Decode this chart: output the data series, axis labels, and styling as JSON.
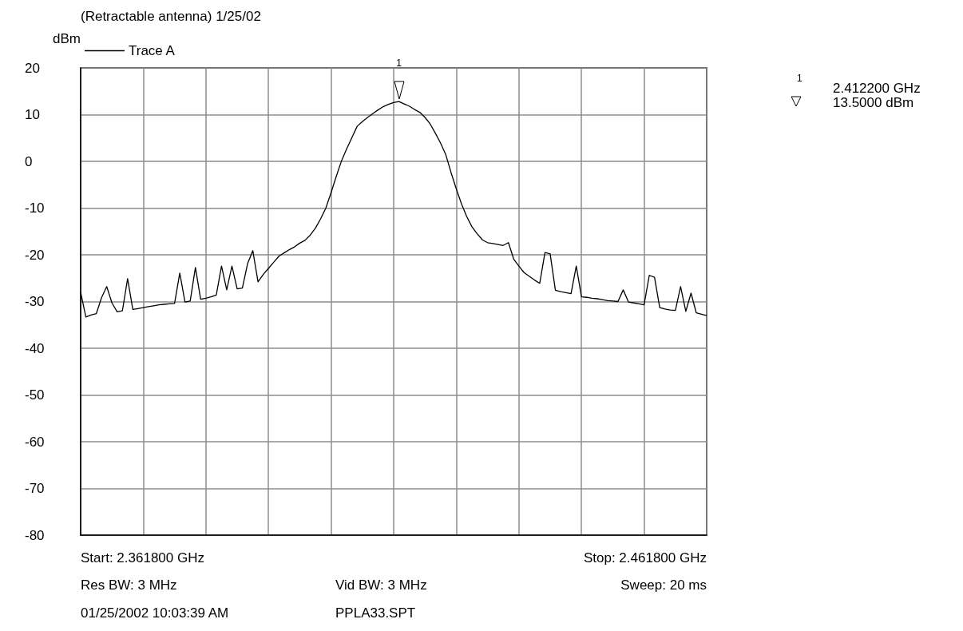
{
  "chart_data": {
    "type": "line",
    "title": "(Retractable antenna) 1/25/02",
    "ylabel": "dBm",
    "categories": [
      null,
      null,
      null,
      null,
      null,
      null,
      null,
      null,
      null,
      null,
      null,
      null,
      null,
      null,
      null,
      null,
      null,
      null,
      null,
      null,
      null,
      null,
      null,
      null,
      null,
      null,
      null,
      null,
      null,
      null,
      null,
      null,
      null,
      null,
      null,
      null,
      null,
      null,
      null,
      null,
      null,
      null,
      null,
      null,
      null,
      null,
      null,
      null,
      null,
      null,
      null,
      null,
      null,
      null,
      null,
      null,
      null,
      null,
      null,
      null,
      null,
      null,
      null,
      null,
      null,
      null,
      null,
      null,
      null,
      null,
      null,
      null,
      null,
      null,
      null,
      null,
      null,
      null,
      null,
      null,
      null,
      null,
      null,
      null,
      null,
      null,
      null,
      null,
      null,
      null,
      null,
      null,
      null,
      null,
      null,
      null,
      null,
      null,
      null,
      null,
      null,
      null,
      null,
      null,
      null,
      null,
      null,
      null,
      null,
      null,
      null,
      null,
      null,
      null,
      null,
      null,
      null,
      null,
      null,
      null,
      null
    ],
    "ylim": [
      -80,
      20
    ],
    "yticks": [
      -80,
      -70,
      -60,
      -50,
      -40,
      -30,
      -20,
      -10,
      0,
      10,
      20
    ],
    "tick_labels": "y",
    "grid": true,
    "legend": "top left",
    "line_style": "solid",
    "series": [
      {
        "name": "Trace A",
        "color": "#000000",
        "values": [
          -28.0,
          -33.3,
          -32.9,
          -32.6,
          -29.2,
          -26.8,
          -30.3,
          -32.2,
          -32.0,
          -25.1,
          -31.7,
          -31.5,
          -31.3,
          -31.1,
          -30.9,
          -30.7,
          -30.6,
          -30.5,
          -30.4,
          -23.9,
          -30.1,
          -29.9,
          -22.7,
          -29.5,
          -29.3,
          -29.0,
          -28.6,
          -22.4,
          -27.5,
          -22.4,
          -27.3,
          -27.1,
          -21.9,
          -19.1,
          -25.8,
          -24.2,
          -22.9,
          -21.6,
          -20.3,
          -19.6,
          -18.9,
          -18.3,
          -17.5,
          -16.9,
          -15.8,
          -14.3,
          -12.3,
          -10.0,
          -6.7,
          -3.2,
          0.1,
          2.7,
          5.1,
          7.5,
          8.5,
          9.4,
          10.2,
          11.0,
          11.7,
          12.2,
          12.6,
          12.8,
          12.3,
          11.8,
          11.1,
          10.5,
          9.4,
          8.0,
          6.0,
          3.9,
          1.4,
          -2.4,
          -5.9,
          -9.1,
          -11.8,
          -14.0,
          -15.5,
          -16.8,
          -17.4,
          -17.6,
          -17.8,
          -18.0,
          -17.4,
          -20.9,
          -22.4,
          -23.8,
          -24.6,
          -25.4,
          -26.1,
          -19.5,
          -19.8,
          -27.6,
          -27.9,
          -28.1,
          -28.3,
          -22.4,
          -29.0,
          -29.1,
          -29.3,
          -29.4,
          -29.6,
          -29.8,
          -29.9,
          -30.0,
          -27.5,
          -30.1,
          -30.3,
          -30.5,
          -30.7,
          -24.4,
          -24.8,
          -31.3,
          -31.6,
          -31.8,
          -31.9,
          -26.8,
          -32.1,
          -28.2,
          -32.4,
          -32.7,
          -33.0
        ]
      }
    ],
    "annotations": [
      "1",
      "1",
      "2.412200 GHz",
      "13.5000 dBm",
      "Start: 2.361800 GHz",
      "Stop: 2.461800 GHz",
      "Res BW: 3 MHz",
      "Vid BW: 3 MHz",
      "Sweep: 20 ms",
      "01/25/2002 10:03:39 AM",
      "PPLA33.SPT"
    ]
  }
}
